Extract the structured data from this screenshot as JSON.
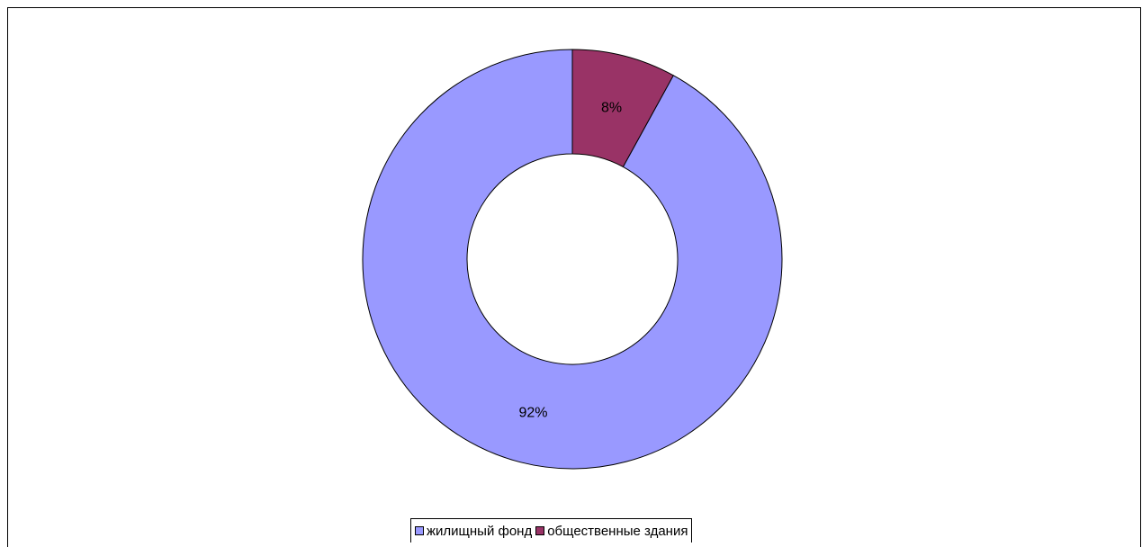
{
  "chart_data": {
    "type": "pie",
    "variant": "donut",
    "title": "",
    "categories": [
      "жилищный фонд",
      "общественные здания"
    ],
    "values": [
      92,
      8
    ],
    "labels": [
      "92%",
      "8%"
    ],
    "colors": [
      "#9999ff",
      "#993366"
    ],
    "legend_position": "bottom"
  }
}
